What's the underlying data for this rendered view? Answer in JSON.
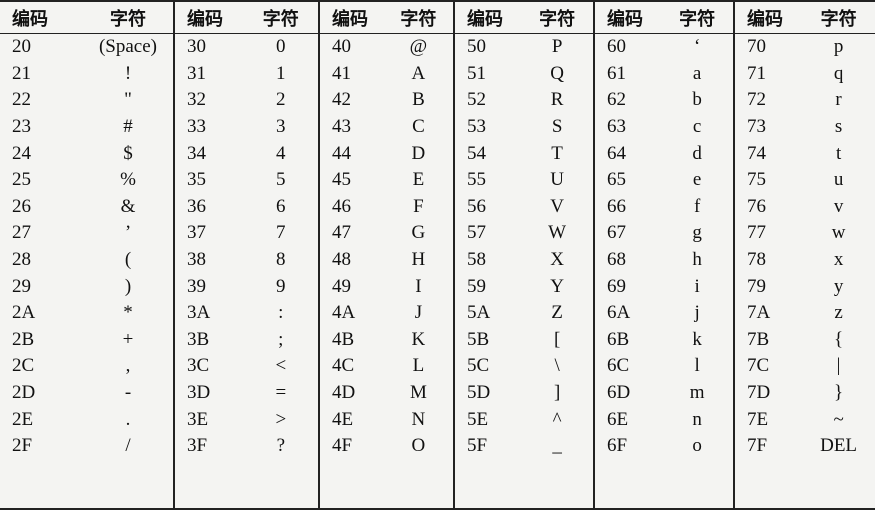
{
  "headers": {
    "code": "编码",
    "char": "字符"
  },
  "groups": [
    {
      "rows": [
        [
          "20",
          "(Space)"
        ],
        [
          "21",
          "!"
        ],
        [
          "22",
          "\""
        ],
        [
          "23",
          "#"
        ],
        [
          "24",
          "$"
        ],
        [
          "25",
          "%"
        ],
        [
          "26",
          "&"
        ],
        [
          "27",
          "’"
        ],
        [
          "28",
          "("
        ],
        [
          "29",
          ")"
        ],
        [
          "2A",
          "*"
        ],
        [
          "2B",
          "+"
        ],
        [
          "2C",
          ","
        ],
        [
          "2D",
          "-"
        ],
        [
          "2E",
          "."
        ],
        [
          "2F",
          "/"
        ]
      ]
    },
    {
      "rows": [
        [
          "30",
          "0"
        ],
        [
          "31",
          "1"
        ],
        [
          "32",
          "2"
        ],
        [
          "33",
          "3"
        ],
        [
          "34",
          "4"
        ],
        [
          "35",
          "5"
        ],
        [
          "36",
          "6"
        ],
        [
          "37",
          "7"
        ],
        [
          "38",
          "8"
        ],
        [
          "39",
          "9"
        ],
        [
          "3A",
          ":"
        ],
        [
          "3B",
          ";"
        ],
        [
          "3C",
          "<"
        ],
        [
          "3D",
          "="
        ],
        [
          "3E",
          ">"
        ],
        [
          "3F",
          "?"
        ]
      ]
    },
    {
      "rows": [
        [
          "40",
          "@"
        ],
        [
          "41",
          "A"
        ],
        [
          "42",
          "B"
        ],
        [
          "43",
          "C"
        ],
        [
          "44",
          "D"
        ],
        [
          "45",
          "E"
        ],
        [
          "46",
          "F"
        ],
        [
          "47",
          "G"
        ],
        [
          "48",
          "H"
        ],
        [
          "49",
          "I"
        ],
        [
          "4A",
          "J"
        ],
        [
          "4B",
          "K"
        ],
        [
          "4C",
          "L"
        ],
        [
          "4D",
          "M"
        ],
        [
          "4E",
          "N"
        ],
        [
          "4F",
          "O"
        ]
      ]
    },
    {
      "rows": [
        [
          "50",
          "P"
        ],
        [
          "51",
          "Q"
        ],
        [
          "52",
          "R"
        ],
        [
          "53",
          "S"
        ],
        [
          "54",
          "T"
        ],
        [
          "55",
          "U"
        ],
        [
          "56",
          "V"
        ],
        [
          "57",
          "W"
        ],
        [
          "58",
          "X"
        ],
        [
          "59",
          "Y"
        ],
        [
          "5A",
          "Z"
        ],
        [
          "5B",
          "["
        ],
        [
          "5C",
          "\\"
        ],
        [
          "5D",
          "]"
        ],
        [
          "5E",
          "^"
        ],
        [
          "5F",
          "_"
        ]
      ]
    },
    {
      "rows": [
        [
          "60",
          "‘"
        ],
        [
          "61",
          "a"
        ],
        [
          "62",
          "b"
        ],
        [
          "63",
          "c"
        ],
        [
          "64",
          "d"
        ],
        [
          "65",
          "e"
        ],
        [
          "66",
          "f"
        ],
        [
          "67",
          "g"
        ],
        [
          "68",
          "h"
        ],
        [
          "69",
          "i"
        ],
        [
          "6A",
          "j"
        ],
        [
          "6B",
          "k"
        ],
        [
          "6C",
          "l"
        ],
        [
          "6D",
          "m"
        ],
        [
          "6E",
          "n"
        ],
        [
          "6F",
          "o"
        ]
      ]
    },
    {
      "rows": [
        [
          "70",
          "p"
        ],
        [
          "71",
          "q"
        ],
        [
          "72",
          "r"
        ],
        [
          "73",
          "s"
        ],
        [
          "74",
          "t"
        ],
        [
          "75",
          "u"
        ],
        [
          "76",
          "v"
        ],
        [
          "77",
          "w"
        ],
        [
          "78",
          "x"
        ],
        [
          "79",
          "y"
        ],
        [
          "7A",
          "z"
        ],
        [
          "7B",
          "{"
        ],
        [
          "7C",
          "|"
        ],
        [
          "7D",
          "}"
        ],
        [
          "7E",
          "~"
        ],
        [
          "7F",
          "DEL"
        ]
      ]
    }
  ]
}
